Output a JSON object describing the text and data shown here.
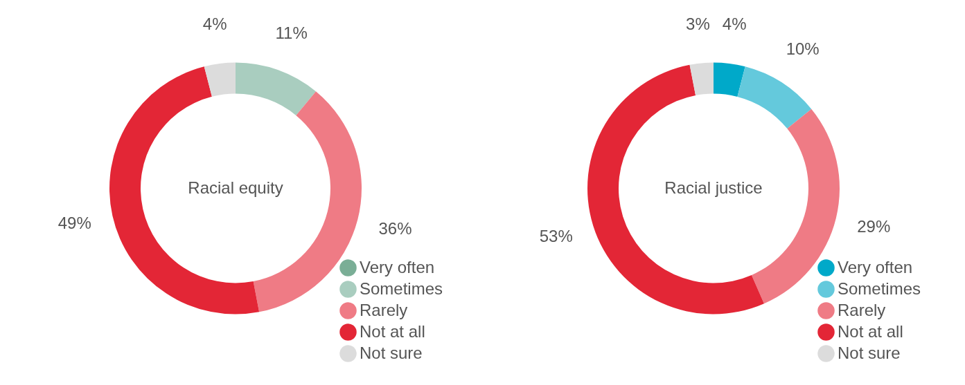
{
  "chart_data": [
    {
      "type": "donut",
      "title": "Racial equity",
      "categories": [
        "Very often",
        "Sometimes",
        "Rarely",
        "Not at all",
        "Not sure"
      ],
      "values": [
        0,
        11,
        36,
        49,
        4
      ],
      "value_labels": [
        null,
        "11%",
        "36%",
        "49%",
        "4%"
      ],
      "colors": [
        "#7aae96",
        "#a9cdbf",
        "#ef7b85",
        "#e32636",
        "#dcdcdc"
      ],
      "legend": "bottom right"
    },
    {
      "type": "donut",
      "title": "Racial justice",
      "categories": [
        "Very often",
        "Sometimes",
        "Rarely",
        "Not at all",
        "Not sure"
      ],
      "values": [
        4,
        10,
        29,
        53,
        3
      ],
      "value_labels": [
        "4%",
        "10%",
        "29%",
        "53%",
        "3%"
      ],
      "colors": [
        "#00a9c9",
        "#64c9dc",
        "#ef7b85",
        "#e32636",
        "#dcdcdc"
      ],
      "legend": "bottom right"
    }
  ]
}
